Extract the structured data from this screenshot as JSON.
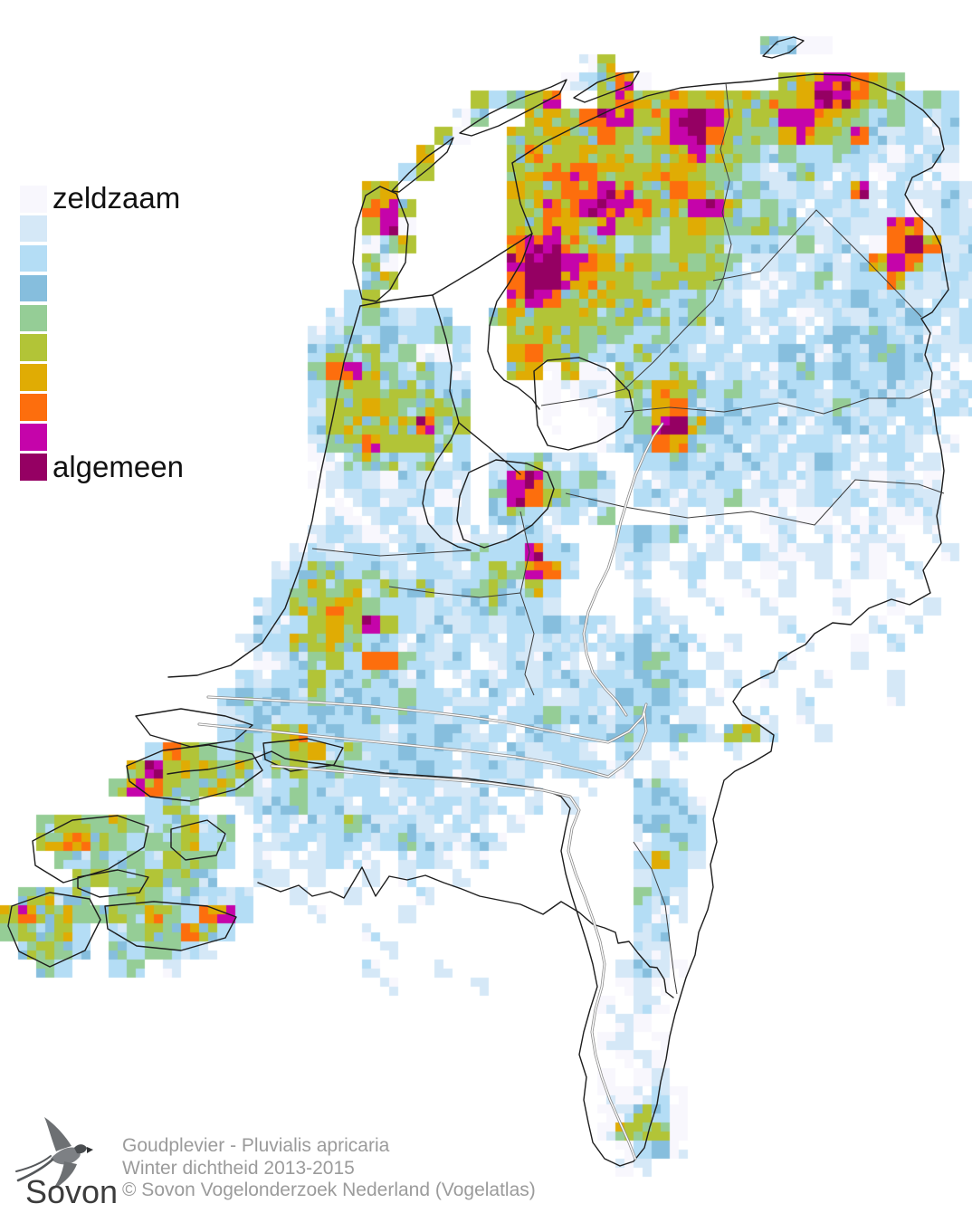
{
  "legend": {
    "min_label": "zeldzaam",
    "max_label": "algemeen",
    "colors": [
      "#f8f7fd",
      "#d5e8f7",
      "#b4ddf5",
      "#86bedd",
      "#95cd96",
      "#b2c437",
      "#e0ac04",
      "#fd6e0d",
      "#c504aa",
      "#950063"
    ]
  },
  "caption": {
    "line1": "Goudplevier - Pluvialis apricaria",
    "line2": "Winter dichtheid 2013-2015",
    "line3": "© Sovon Vogelonderzoek Nederland (Vogelatlas)"
  },
  "logo": {
    "text": "Sovon",
    "icon": "swallow-icon"
  },
  "map": {
    "cell_size": 20,
    "palette": {
      "a": "#f8f7fd",
      "b": "#d5e8f7",
      "c": "#b4ddf5",
      "d": "#86bedd",
      "e": "#95cd96",
      "f": "#b2c437",
      "g": "#e0ac04",
      "h": "#fd6e0d",
      "i": "#c504aa",
      "j": "#950063"
    },
    "rows": [
      "......................................................",
      "......................................................",
      "..........................................ecaa........",
      "................................af....................",
      "...............................acfha.......fgiihfe....",
      "..........................fcefi..fhgfgfgffgfgjihfecec.",
      ".........................ae..fgfhiifgijifffiigfececbc.",
      "........................fa..ffgffhfegijhfeegifehcbcbc.",
      ".......................g....fgffgffefgifeececcecbabcb.",
      "......................cf....fghhhgffggfeecbcecbcabcba.",
      "....................fg......gffhhihffhgfcecbcbcibcbbcb",
      "....................hif.....fghhijihfgiifcecbcbcbcabcb",
      "....................fia.....ffhgfiffefgfeefecbcbbhhbcb",
      "....................aef.....hiihffcecffecccbebcbahjhbc",
      "....................ea......ijjihgffefefebbcbcbchihcbc",
      "....................ef......hjjigffefffecbabcebcchcbcb",
      "...................cf.......hihffgffececb.bcbccdccbbcb",
      "..................bcecbcc..fgffffefeececcbcbabcbccdcbc",
      ".................bcdcdccec..ffgfeeececcbcbbcbcdcdccbbc",
      ".................cfefceaac..ghffecceccbcbccdcbccddccbb",
      ".................ehifececb..fgafaaeccecbcbbcdcdccdcbb.",
      ".................ceffefecc....aabafegfececbccbcdccbabc",
      ".................bffgfeffe....a.abceghccdccbccecbccbcb",
      ".................cfgfffief....a..aceijgdccbcbcdccbcb..",
      ".................befhfffec.......acdhgdccbcbccbbccb.b.",
      ".................abefecebc.bcecbc..ccdccbcbcbdcbbcbb..",
      ".................abcbacbcb.cijecec.bbcbccbcbbcbbabba..",
      "..................abcbbcab.eihfecb.ccbcbebbabcbcacbb..",
      "..................babcbacb.cecbcbe...b.b..abaababaab..",
      ".................bcbabcbbabbccb...cdce.bb.ab.babba.b..",
      "................bcbccbccbceccicc..bcb.bb.cbabb.bab..b.",
      "...............bcefcecbccbcfeihc..bc.bc.b.ab.b.ba.b...",
      "...............cefefcecebcefcfc....b..b..b.b..a..b....",
      "..............bcffhfeccbccceccb....cb..b..b...b..a.b..",
      "..............cbcfgfifcbcbcbccdccb.bcb.....b....b.b...",
      ".............bccffgeccbcbcbbcbccbbcdcdb.b...b..a.b....",
      "..............abcefchhecbc.bcbcb.bcdec.b...b...b......",
      ".............cbccfccecbc.bcbcbccbccdecc.b.b..b...b....",
      "............cdcdcecdcceccbbcbcbbcbdcdc.b....b....b....",
      "............bcdccdccdcdcbccbcceccbcdcbb..bb.b.........",
      "............cdcfgcdccbccdcbcbccbccdccdcbffb..b........",
      "........chfececefgceccdccbcbcbccb.cb.b..b.............",
      ".......fifgfefcefceccccdcbccbcbccbb.b.................",
      "......eihfeffebcecbccbccbbcbcb..b..cdc................",
      "........cfe..bcceccbccbccbcb.b.b...ccdb...............",
      "..effefecefce.bcbccecbcbbcb.b......cdcc...............",
      "..fghfeceefce.bbcbccbcecbbcb.......bcdc...............",
      "...ecececfeec.b.bbcbb.bcb.b........cgcb...............",
      "....efeefeec..bb.b..b.b..b.........bcc................",
      ".efce.efececbc..b..b...b...........ecb................",
      "fhfgeefegechic...b....b............cbb................",
      "efefc.cefehfc.......b..............bc..................",
      ".efec.eceecb.........b.............bb.................",
      "..ec..ce.b..........b...b.........bcba................",
      ".....................b....b.......aba.................",
      ".................................a.ba.................",
      "..................................ba..................",
      ".................................ab.a.................",
      "..................................aba.................",
      ".................................a.ab.................",
      ".................................aabca................",
      ".................................abfca................",
      ".................................afefa................",
      "..................................acda................",
      "..................................ab..................",
      "......................................................"
    ]
  }
}
